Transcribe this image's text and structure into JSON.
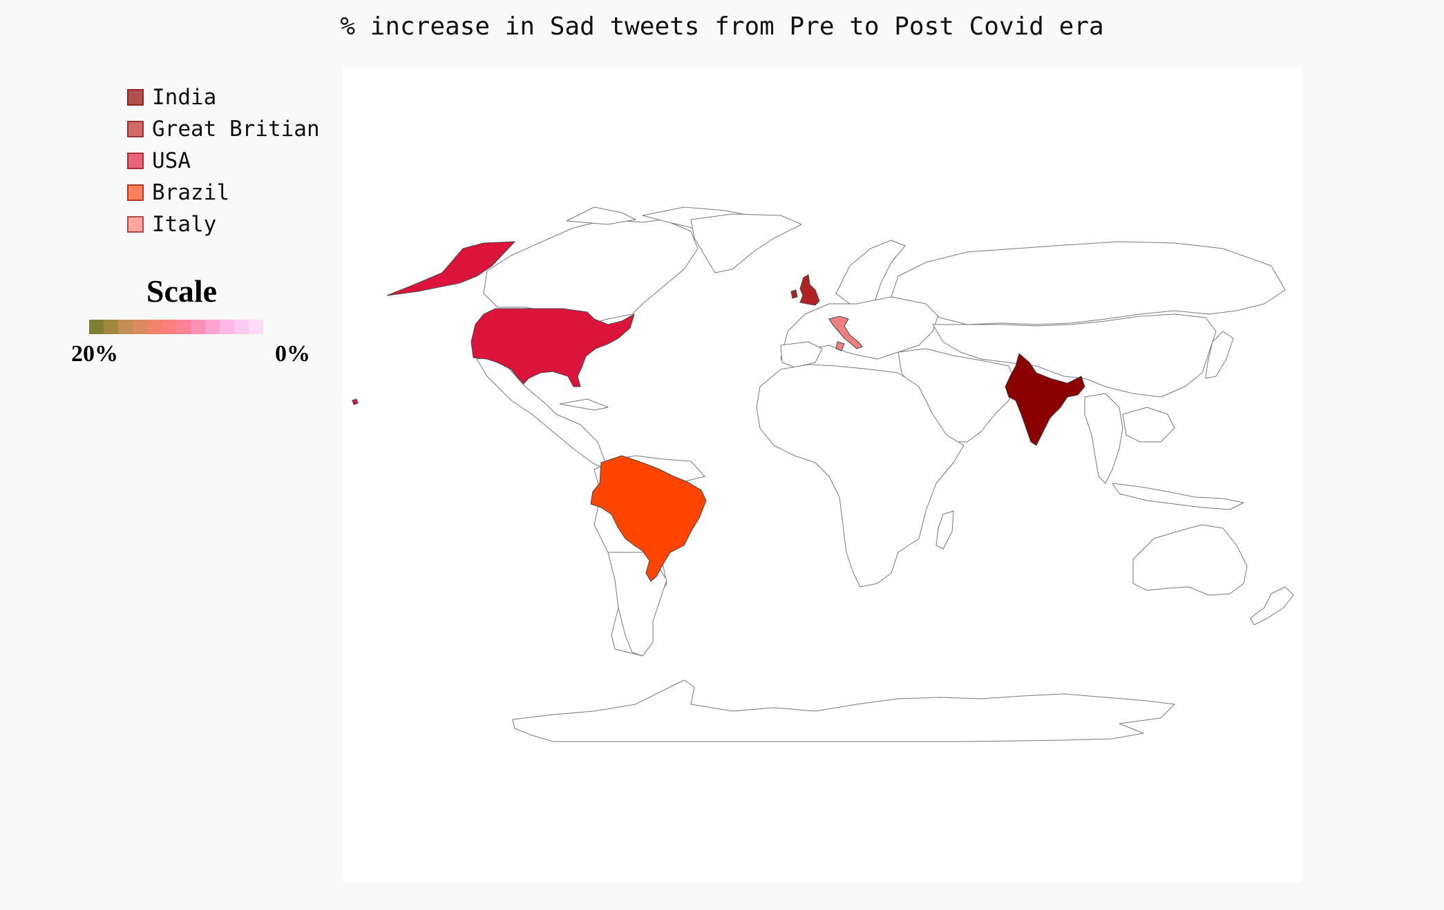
{
  "title": "% increase in Sad tweets from Pre to Post Covid era",
  "legend": {
    "items": [
      {
        "label": "India",
        "color": "#b0504e"
      },
      {
        "label": "Great Britian",
        "color": "#cf6a68"
      },
      {
        "label": "USA",
        "color": "#e8647c"
      },
      {
        "label": "Brazil",
        "color": "#fe7f5c"
      },
      {
        "label": "Italy",
        "color": "#fba59c"
      }
    ]
  },
  "scale": {
    "title": "Scale",
    "max_label": "20%",
    "min_label": "0%",
    "colors": [
      "#7f7f33",
      "#a1873d",
      "#c18e54",
      "#dc8a5f",
      "#f3826c",
      "#fb7f7a",
      "#fb8296",
      "#fb92b5",
      "#fba4d2",
      "#fcb8e6",
      "#fdcaf2",
      "#fedcf9"
    ]
  },
  "countries": [
    {
      "name": "India",
      "color": "#8b0000"
    },
    {
      "name": "Great Britian",
      "color": "#b22222"
    },
    {
      "name": "USA",
      "color": "#dc143c"
    },
    {
      "name": "Brazil",
      "color": "#ff4500"
    },
    {
      "name": "Italy",
      "color": "#f08080"
    }
  ]
}
